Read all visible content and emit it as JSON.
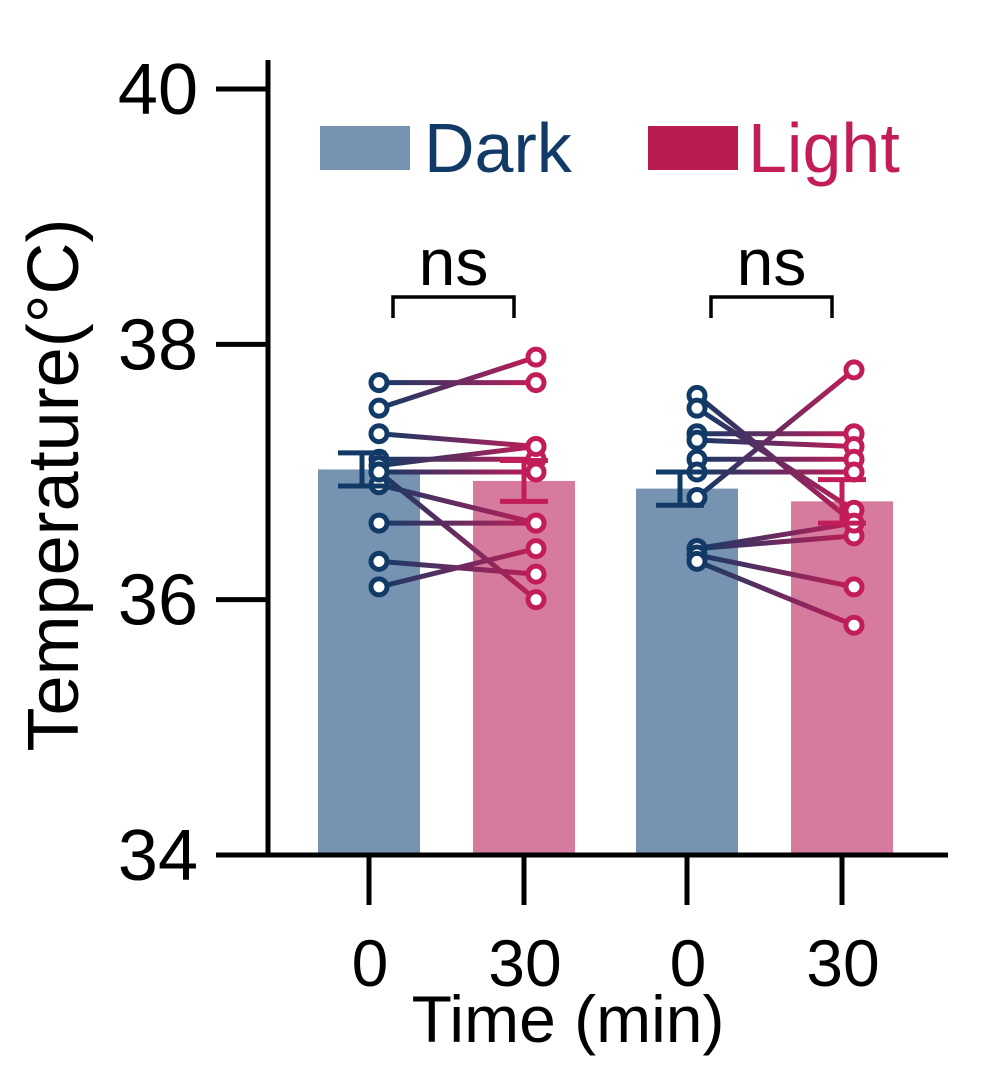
{
  "chart_data": {
    "type": "bar",
    "xlabel": "Time (min)",
    "ylabel": "Temperature(°C)",
    "ylim": [
      34,
      40.2
    ],
    "yticks": [
      34,
      36,
      38,
      40
    ],
    "ytick_labels": [
      "34",
      "36",
      "38",
      "40"
    ],
    "categories": [
      "0",
      "30",
      "0",
      "30"
    ],
    "legend": {
      "placement": "top",
      "entries": [
        {
          "label": "Dark",
          "color": "#7694b2",
          "text_color": "#123a66"
        },
        {
          "label": "Light",
          "color": "#b81b52",
          "text_color": "#c21d58"
        }
      ]
    },
    "bars": [
      {
        "group": 1,
        "tick_label": "0",
        "condition": "Dark",
        "mean": 37.02,
        "sem": 0.13,
        "color": "#7694b2"
      },
      {
        "group": 1,
        "tick_label": "30",
        "condition": "Light",
        "mean": 36.93,
        "sem": 0.16,
        "color": "#d67b9e"
      },
      {
        "group": 2,
        "tick_label": "0",
        "condition": "Dark",
        "mean": 36.87,
        "sem": 0.13,
        "color": "#7694b2"
      },
      {
        "group": 2,
        "tick_label": "30",
        "condition": "Light",
        "mean": 36.77,
        "sem": 0.17,
        "color": "#d67b9e"
      }
    ],
    "paired_points": [
      {
        "group": 1,
        "pairs": [
          [
            37.7,
            37.7
          ],
          [
            37.5,
            37.9
          ],
          [
            37.3,
            37.2
          ],
          [
            37.1,
            37.1
          ],
          [
            37.05,
            37.2
          ],
          [
            37.0,
            37.0
          ],
          [
            36.9,
            36.6
          ],
          [
            36.6,
            36.6
          ],
          [
            36.3,
            36.2
          ],
          [
            36.1,
            36.4
          ],
          [
            37.0,
            36.0
          ]
        ]
      },
      {
        "group": 2,
        "pairs": [
          [
            37.6,
            36.6
          ],
          [
            37.5,
            36.7
          ],
          [
            37.3,
            37.3
          ],
          [
            37.25,
            37.2
          ],
          [
            37.1,
            37.1
          ],
          [
            37.0,
            37.0
          ],
          [
            36.8,
            37.8
          ],
          [
            36.4,
            36.5
          ],
          [
            36.4,
            36.6
          ],
          [
            36.35,
            36.1
          ],
          [
            36.3,
            35.8
          ]
        ]
      }
    ],
    "point_colors": {
      "start": "#123a66",
      "end": "#c21d58"
    },
    "annotations": [
      {
        "group": 1,
        "text": "ns"
      },
      {
        "group": 2,
        "text": "ns"
      }
    ]
  }
}
